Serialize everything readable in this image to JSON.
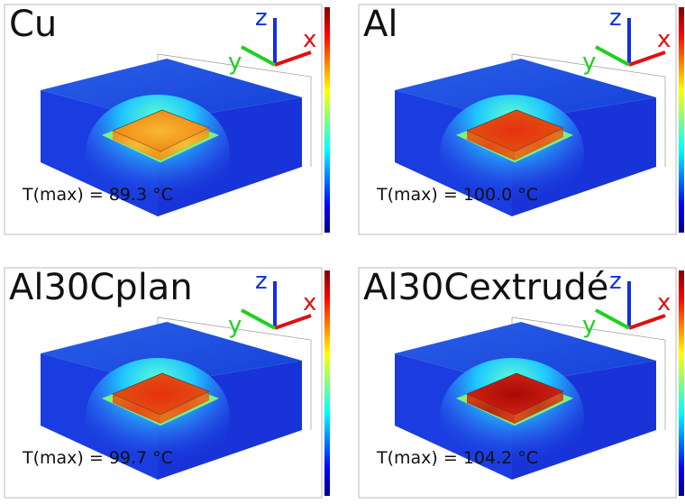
{
  "panels": [
    {
      "label": "Cu",
      "tmax": "T(max) = 89.3 °C"
    },
    {
      "label": "Al",
      "tmax": "T(max) = 100.0 °C"
    },
    {
      "label": "Al30Cplan",
      "tmax": "T(max) = 99.7 °C"
    },
    {
      "label": "Al30Cextrudé",
      "tmax": "T(max) = 104.2 °C"
    }
  ],
  "axes": {
    "x": "x",
    "y": "y",
    "z": "z"
  }
}
